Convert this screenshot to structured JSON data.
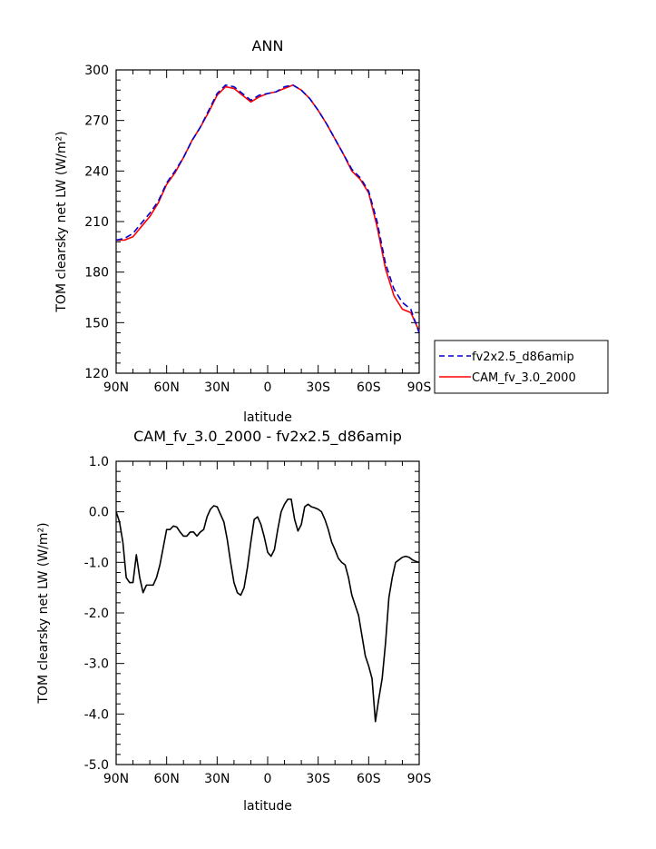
{
  "chart_data": [
    {
      "type": "line",
      "title": "ANN",
      "xlabel": "latitude",
      "ylabel": "TOM clearsky net LW (W/m²)",
      "xlim": [
        -90,
        90
      ],
      "ylim": [
        120,
        300
      ],
      "x_ticks": [
        "90N",
        "60N",
        "30N",
        "0",
        "30S",
        "60S",
        "90S"
      ],
      "y_ticks": [
        "120",
        "150",
        "180",
        "210",
        "240",
        "270",
        "300"
      ],
      "legend": {
        "placement": "right"
      },
      "x": [
        -90,
        -85,
        -80,
        -75,
        -70,
        -65,
        -60,
        -55,
        -50,
        -45,
        -40,
        -35,
        -30,
        -25,
        -20,
        -15,
        -10,
        -5,
        0,
        5,
        10,
        15,
        20,
        25,
        30,
        35,
        40,
        45,
        50,
        55,
        60,
        65,
        70,
        75,
        80,
        85,
        90
      ],
      "series": [
        {
          "name": "fv2x2.5_d86amip",
          "color": "#0000cc",
          "dash": "dashed",
          "values": [
            199,
            200,
            203,
            209,
            215,
            222,
            233,
            240,
            248,
            258,
            266,
            276,
            286,
            291,
            290,
            286,
            282,
            285,
            286,
            287,
            290,
            291,
            288,
            283,
            276,
            268,
            259,
            250,
            241,
            236,
            228,
            210,
            185,
            170,
            162,
            158,
            144
          ]
        },
        {
          "name": "CAM_fv_3.0_2000",
          "color": "#ff0000",
          "dash": "solid",
          "values": [
            199,
            199,
            201,
            207,
            213,
            221,
            232,
            239,
            248,
            258,
            266,
            275,
            285,
            290,
            289,
            285,
            281,
            284,
            286,
            287,
            289,
            291,
            288,
            283,
            276,
            268,
            259,
            250,
            240,
            235,
            227,
            207,
            182,
            166,
            158,
            156,
            145
          ]
        }
      ]
    },
    {
      "type": "line",
      "title": "CAM_fv_3.0_2000 - fv2x2.5_d86amip",
      "xlabel": "latitude",
      "ylabel": "TOM clearsky net LW (W/m²)",
      "xlim": [
        -90,
        90
      ],
      "ylim": [
        -5.0,
        1.0
      ],
      "x_ticks": [
        "90N",
        "60N",
        "30N",
        "0",
        "30S",
        "60S",
        "90S"
      ],
      "y_ticks": [
        "-5.0",
        "-4.0",
        "-3.0",
        "-2.0",
        "-1.0",
        "0.0",
        "1.0"
      ],
      "series": [
        {
          "name": "difference",
          "color": "#000000",
          "x": [
            -90,
            -88,
            -86,
            -84,
            -82,
            -80,
            -78,
            -76,
            -74,
            -72,
            -70,
            -68,
            -66,
            -64,
            -62,
            -60,
            -58,
            -56,
            -54,
            -52,
            -50,
            -48,
            -46,
            -44,
            -42,
            -40,
            -38,
            -36,
            -34,
            -32,
            -30,
            -28,
            -26,
            -24,
            -22,
            -20,
            -18,
            -16,
            -14,
            -12,
            -10,
            -8,
            -6,
            -4,
            -2,
            0,
            2,
            4,
            6,
            8,
            10,
            12,
            14,
            16,
            18,
            20,
            22,
            24,
            26,
            28,
            30,
            32,
            34,
            36,
            38,
            40,
            42,
            44,
            46,
            48,
            50,
            52,
            54,
            56,
            58,
            60,
            62,
            64,
            66,
            68,
            70,
            72,
            74,
            76,
            78,
            80,
            82,
            84,
            86,
            88,
            90
          ],
          "values": [
            0.0,
            -0.2,
            -0.6,
            -1.3,
            -1.4,
            -1.4,
            -0.85,
            -1.3,
            -1.6,
            -1.45,
            -1.45,
            -1.45,
            -1.3,
            -1.05,
            -0.7,
            -0.35,
            -0.35,
            -0.28,
            -0.3,
            -0.4,
            -0.48,
            -0.48,
            -0.4,
            -0.4,
            -0.48,
            -0.4,
            -0.35,
            -0.1,
            0.05,
            0.12,
            0.1,
            -0.05,
            -0.2,
            -0.55,
            -1.0,
            -1.4,
            -1.6,
            -1.65,
            -1.5,
            -1.1,
            -0.6,
            -0.15,
            -0.1,
            -0.25,
            -0.5,
            -0.8,
            -0.88,
            -0.75,
            -0.35,
            0.0,
            0.15,
            0.25,
            0.25,
            -0.15,
            -0.38,
            -0.25,
            0.1,
            0.15,
            0.1,
            0.08,
            0.05,
            0.0,
            -0.15,
            -0.35,
            -0.6,
            -0.75,
            -0.92,
            -1.0,
            -1.05,
            -1.3,
            -1.65,
            -1.85,
            -2.05,
            -2.45,
            -2.85,
            -3.05,
            -3.3,
            -4.15,
            -3.7,
            -3.3,
            -2.6,
            -1.7,
            -1.3,
            -1.0,
            -0.95,
            -0.9,
            -0.88,
            -0.9,
            -0.95,
            -0.98,
            -1.0
          ]
        }
      ]
    }
  ]
}
